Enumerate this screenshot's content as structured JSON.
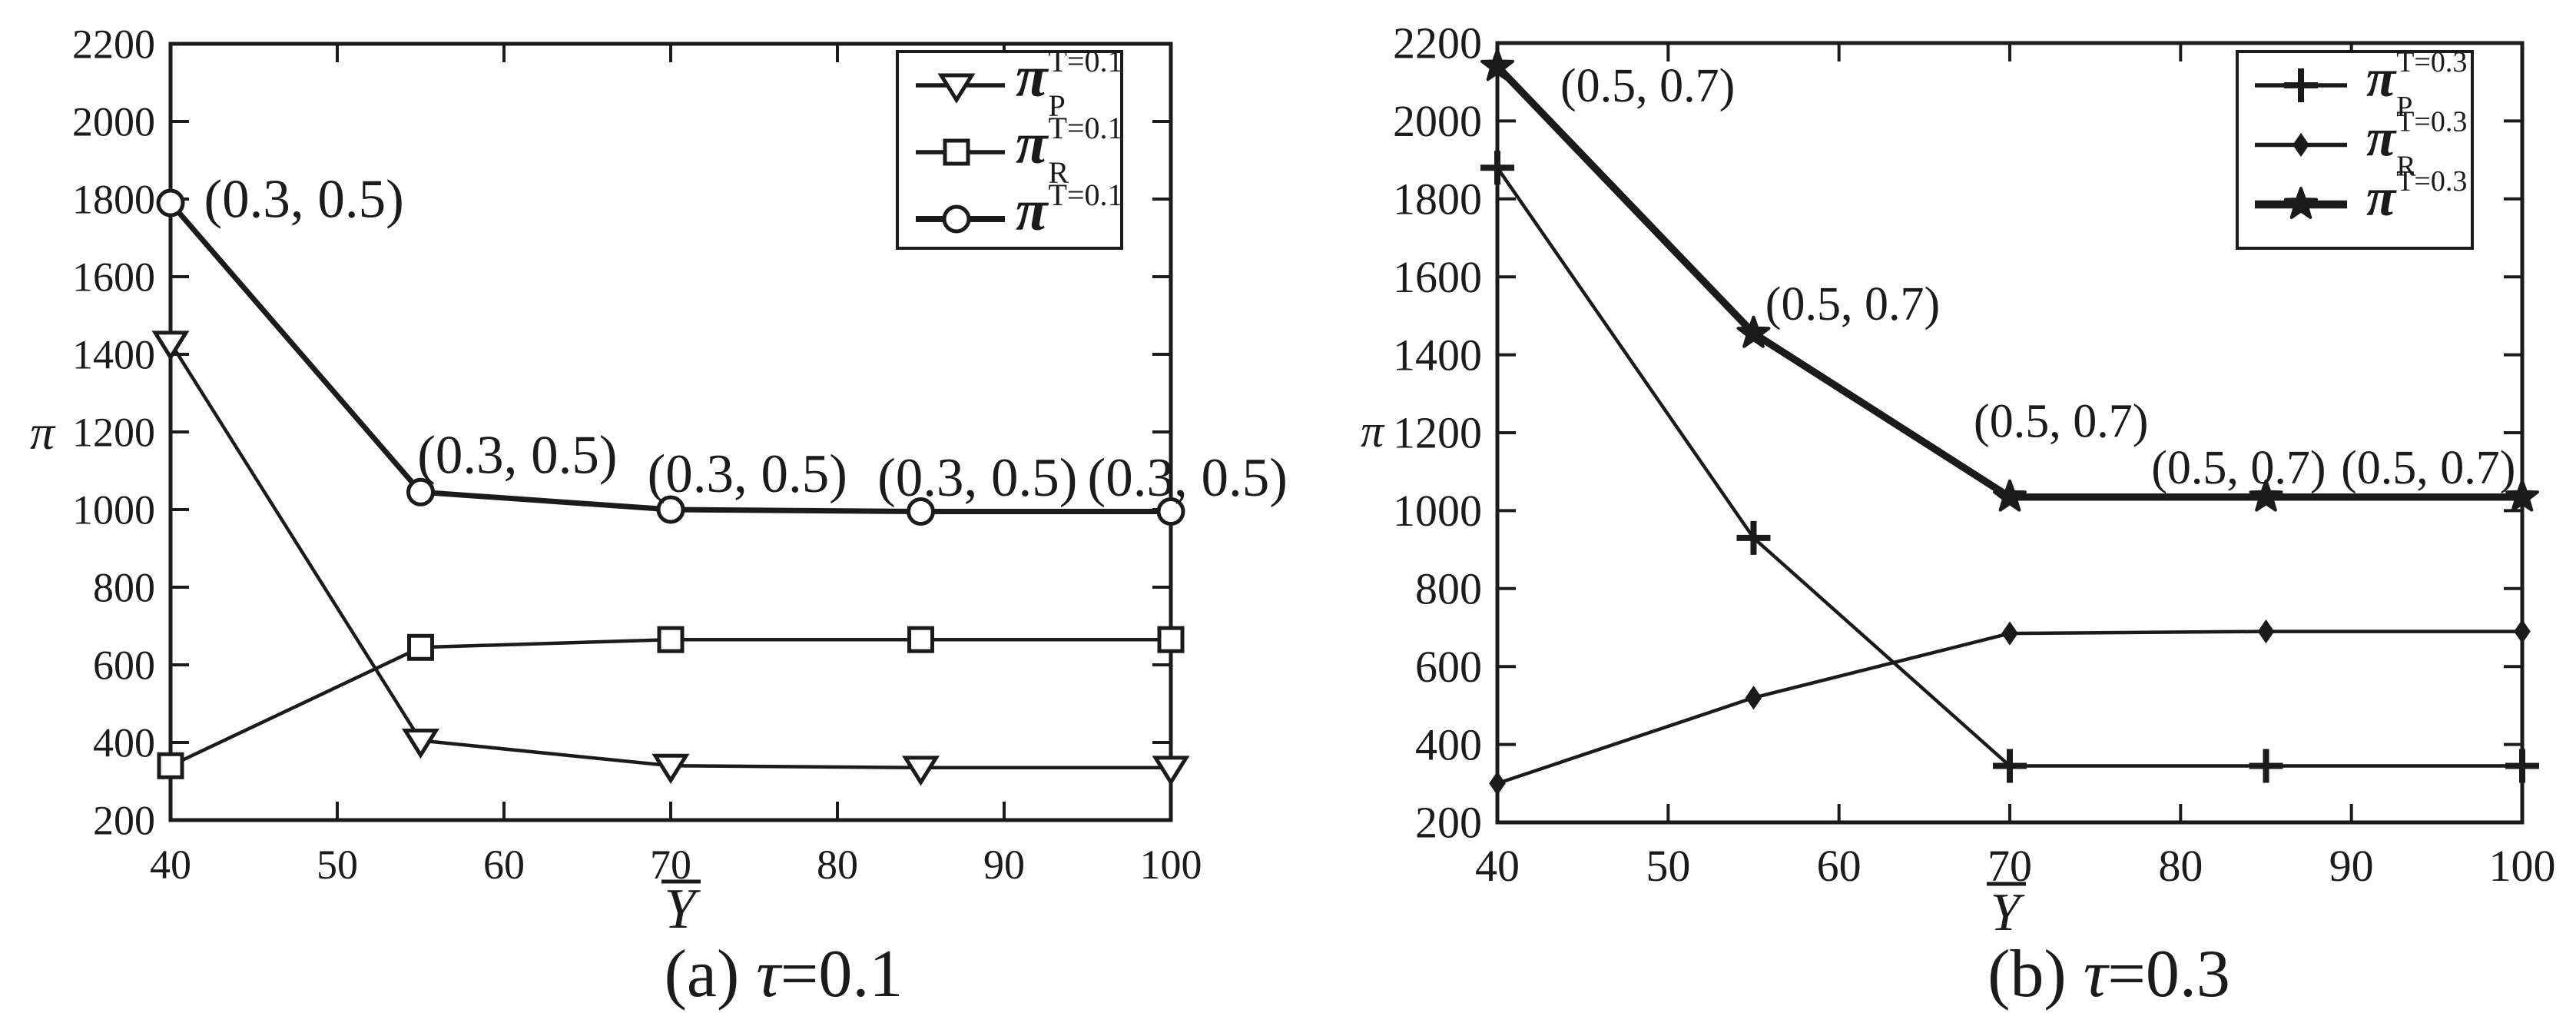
{
  "figure": {
    "background": "#ffffff",
    "ink": "#1b1b1b"
  },
  "chart_data": [
    {
      "id": "a",
      "type": "line",
      "caption": {
        "prefix": "(a) ",
        "symbol": "τ",
        "value": "=0.1"
      },
      "xlabel": "Y",
      "xlabel_overbar": true,
      "ylabel": "π",
      "xlim": [
        40,
        100
      ],
      "ylim": [
        200,
        2200
      ],
      "x_ticks": [
        40,
        50,
        60,
        70,
        80,
        90,
        100
      ],
      "y_ticks": [
        200,
        400,
        600,
        800,
        1000,
        1200,
        1400,
        1600,
        1800,
        2000,
        2200
      ],
      "grid": false,
      "legend_position": "top-right",
      "x": [
        40,
        55,
        70,
        85,
        100
      ],
      "series": [
        {
          "key": "pi_P",
          "marker": "triangle-down",
          "label_base": "π",
          "label_sub": "P",
          "label_sup": "T=0.1",
          "values": [
            1430,
            405,
            340,
            335,
            335
          ]
        },
        {
          "key": "pi_R",
          "marker": "square",
          "label_base": "π",
          "label_sub": "R",
          "label_sup": "T=0.1",
          "values": [
            340,
            645,
            665,
            665,
            665
          ]
        },
        {
          "key": "pi",
          "marker": "circle",
          "label_base": "π",
          "label_sub": "",
          "label_sup": "T=0.1",
          "values": [
            1790,
            1045,
            1000,
            995,
            995
          ]
        }
      ],
      "annotations": [
        {
          "x": 48.0,
          "y": 1800,
          "text": "(0.3, 0.5)"
        },
        {
          "x": 60.8,
          "y": 1140,
          "text": "(0.3, 0.5)"
        },
        {
          "x": 74.6,
          "y": 1092,
          "text": "(0.3, 0.5)"
        },
        {
          "x": 88.4,
          "y": 1082,
          "text": "(0.3, 0.5)"
        },
        {
          "x": 101.0,
          "y": 1082,
          "text": "(0.3, 0.5)"
        }
      ]
    },
    {
      "id": "b",
      "type": "line",
      "caption": {
        "prefix": "(b) ",
        "symbol": "τ",
        "value": "=0.3"
      },
      "xlabel": "Y",
      "xlabel_overbar": true,
      "ylabel": "π",
      "xlim": [
        40,
        100
      ],
      "ylim": [
        200,
        2200
      ],
      "x_ticks": [
        40,
        50,
        60,
        70,
        80,
        90,
        100
      ],
      "y_ticks": [
        200,
        400,
        600,
        800,
        1000,
        1200,
        1400,
        1600,
        1800,
        2000,
        2200
      ],
      "grid": false,
      "legend_position": "top-right",
      "x": [
        40,
        55,
        70,
        85,
        100
      ],
      "series": [
        {
          "key": "pi_P",
          "marker": "plus",
          "label_base": "π",
          "label_sub": "P",
          "label_sup": "T=0.3",
          "values": [
            1880,
            930,
            345,
            345,
            345
          ]
        },
        {
          "key": "pi_R",
          "marker": "diamond",
          "label_base": "π",
          "label_sub": "R",
          "label_sup": "T=0.3",
          "values": [
            300,
            520,
            685,
            690,
            690
          ]
        },
        {
          "key": "pi",
          "marker": "star",
          "label_base": "π",
          "label_sub": "",
          "label_sup": "T=0.3",
          "values": [
            2140,
            1455,
            1035,
            1035,
            1035
          ]
        }
      ],
      "annotations": [
        {
          "x": 48.8,
          "y": 2090,
          "text": "(0.5, 0.7)"
        },
        {
          "x": 60.8,
          "y": 1530,
          "text": "(0.5, 0.7)"
        },
        {
          "x": 73.0,
          "y": 1230,
          "text": "(0.5, 0.7)"
        },
        {
          "x": 83.4,
          "y": 1110,
          "text": "(0.5, 0.7)"
        },
        {
          "x": 94.5,
          "y": 1110,
          "text": "(0.5, 0.7)"
        }
      ]
    }
  ]
}
